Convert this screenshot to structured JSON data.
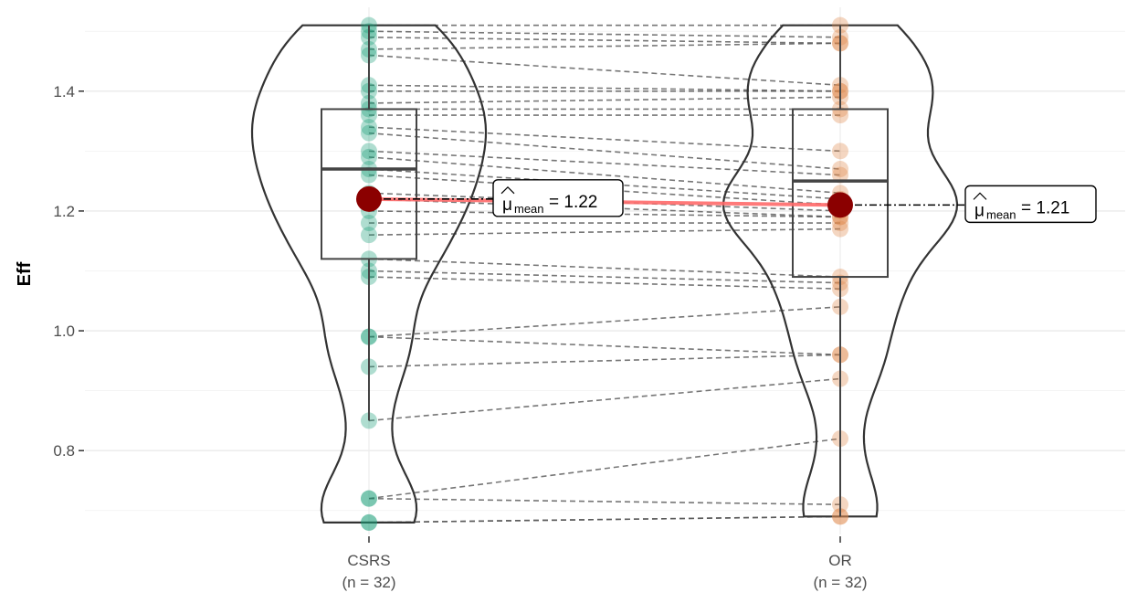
{
  "chart_data": {
    "type": "violin-box-paired",
    "ylabel": "Eff",
    "ylim": [
      0.66,
      1.54
    ],
    "y_ticks": [
      0.8,
      1.0,
      1.2,
      1.4
    ],
    "y_tick_labels": [
      "0.8",
      "1.0",
      "1.2",
      "1.4"
    ],
    "grid": true,
    "categories": [
      {
        "name": "CSRS",
        "n_label": "(n = 32)",
        "color": "#1b9e77",
        "values": [
          1.51,
          1.5,
          1.49,
          1.47,
          1.46,
          1.41,
          1.4,
          1.38,
          1.37,
          1.36,
          1.34,
          1.33,
          1.3,
          1.29,
          1.27,
          1.26,
          1.23,
          1.22,
          1.2,
          1.18,
          1.16,
          1.12,
          1.1,
          1.09,
          0.99,
          0.99,
          0.94,
          0.85,
          0.72,
          0.72,
          0.68,
          0.68
        ],
        "box": {
          "q1": 1.12,
          "median": 1.27,
          "q3": 1.37,
          "whisker_low": 0.85,
          "whisker_high": 1.51
        },
        "violin_range": [
          0.68,
          1.51
        ],
        "mean": 1.22,
        "mean_label": "= 1.22"
      },
      {
        "name": "OR",
        "n_label": "(n = 32)",
        "color": "#e08a4c",
        "values": [
          1.51,
          1.49,
          1.48,
          1.48,
          1.41,
          1.4,
          1.4,
          1.39,
          1.37,
          1.36,
          1.3,
          1.27,
          1.26,
          1.23,
          1.22,
          1.21,
          1.2,
          1.19,
          1.19,
          1.18,
          1.17,
          1.09,
          1.08,
          1.07,
          1.04,
          0.96,
          0.96,
          0.92,
          0.82,
          0.71,
          0.69,
          0.69
        ],
        "box": {
          "q1": 1.09,
          "median": 1.25,
          "q3": 1.37,
          "whisker_low": 0.69,
          "whisker_high": 1.51
        },
        "violin_range": [
          0.69,
          1.51
        ],
        "mean": 1.21,
        "mean_label": "= 1.21"
      }
    ],
    "mean_symbol": "μ",
    "mean_subscript": "mean",
    "mean_color": "#8b0000",
    "mean_line_color": "#ff6b6b"
  }
}
